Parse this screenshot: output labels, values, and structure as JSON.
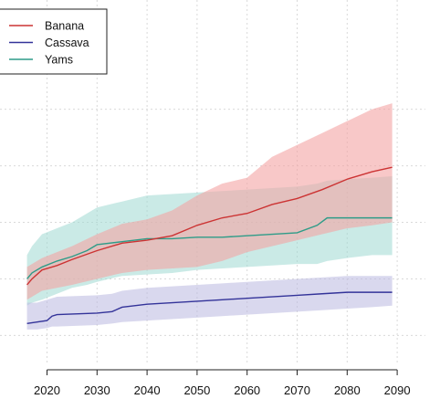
{
  "chart_data": {
    "type": "line",
    "title": "",
    "xlabel": "",
    "ylabel": "",
    "xlim": [
      2014,
      2094
    ],
    "x_ticks": [
      2020,
      2030,
      2040,
      2050,
      2060,
      2070,
      2080,
      2090
    ],
    "x_tick_labels": [
      "2020",
      "2030",
      "2040",
      "2050",
      "2060",
      "2070",
      "2080",
      "2090"
    ],
    "ylim": [
      0,
      100
    ],
    "y_ticks": [
      10,
      29,
      48,
      67,
      86
    ],
    "grid": true,
    "legend": {
      "placement": "top-left"
    },
    "series": [
      {
        "name": "Banana",
        "color": "#cc3333",
        "band_color": "#f4a3a3",
        "x": [
          2016,
          2017,
          2019,
          2022,
          2025,
          2030,
          2035,
          2040,
          2045,
          2050,
          2055,
          2060,
          2065,
          2070,
          2075,
          2080,
          2085,
          2089
        ],
        "y": [
          27,
          29,
          32,
          33.5,
          35.5,
          38.5,
          41,
          42,
          43.5,
          47,
          49.5,
          51,
          54,
          56,
          59,
          62.5,
          65,
          66.5
        ],
        "lower": [
          22,
          23,
          25,
          26,
          27,
          29,
          31,
          32,
          32.5,
          33,
          35,
          38,
          40,
          42,
          44,
          46,
          47,
          48
        ],
        "upper": [
          33,
          34,
          36,
          38,
          40,
          44,
          47.5,
          49,
          52,
          57,
          61,
          63,
          70,
          74,
          78,
          82,
          86,
          88
        ]
      },
      {
        "name": "Cassava",
        "color": "#333399",
        "band_color": "#b9b8e0",
        "x": [
          2016,
          2018,
          2020,
          2021,
          2022,
          2030,
          2033,
          2035,
          2040,
          2045,
          2050,
          2055,
          2060,
          2065,
          2070,
          2075,
          2080,
          2085,
          2089
        ],
        "y": [
          14,
          14.5,
          15,
          16.5,
          17,
          17.5,
          18,
          19.5,
          20.5,
          21,
          21.5,
          22,
          22.5,
          23,
          23.5,
          24,
          24.5,
          24.5,
          24.5
        ],
        "lower": [
          12,
          12,
          12.5,
          13,
          13,
          13.5,
          14,
          14.5,
          15,
          15.5,
          16,
          16.5,
          17,
          17.5,
          18,
          18.5,
          19,
          19.5,
          20
        ],
        "upper": [
          21,
          21,
          22,
          22.5,
          23,
          23.5,
          24,
          25,
          26,
          26.5,
          27,
          27.5,
          28,
          28.5,
          29,
          29.5,
          30,
          30,
          30
        ]
      },
      {
        "name": "Yams",
        "color": "#2e9c88",
        "band_color": "#9ed9d2",
        "x": [
          2016,
          2017,
          2019,
          2022,
          2025,
          2028,
          2030,
          2035,
          2040,
          2045,
          2050,
          2055,
          2060,
          2065,
          2070,
          2074,
          2076,
          2080,
          2085,
          2089
        ],
        "y": [
          29,
          31,
          33,
          35,
          36.5,
          38.5,
          40.5,
          41.5,
          42.5,
          42.5,
          43,
          43,
          43.5,
          44,
          44.5,
          47,
          49.5,
          49.5,
          49.5,
          49.5
        ],
        "lower": [
          20,
          21,
          22,
          24,
          26,
          27,
          28,
          30,
          30.5,
          31,
          32,
          32.5,
          33,
          33.5,
          34,
          34,
          35,
          36,
          37,
          37
        ],
        "upper": [
          37,
          40,
          44,
          46,
          48,
          51,
          53,
          55,
          57,
          57.5,
          58,
          58.5,
          59,
          59.5,
          60,
          61,
          62,
          62.5,
          63,
          63.5
        ]
      }
    ]
  }
}
